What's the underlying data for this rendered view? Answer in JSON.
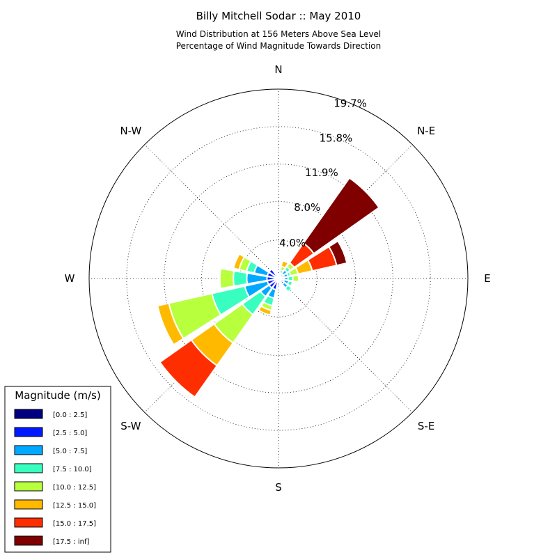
{
  "chart_data": {
    "type": "windrose",
    "title": "Billy Mitchell Sodar :: May 2010",
    "subtitle_line1": "Wind Distribution at 156 Meters Above Sea Level",
    "subtitle_line2": "Percentage of Wind Magnitude Towards Direction",
    "direction_labels": [
      "N",
      "N-E",
      "E",
      "S-E",
      "S",
      "S-W",
      "W",
      "N-W"
    ],
    "ring_values": [
      4.0,
      8.0,
      11.9,
      15.8,
      19.7
    ],
    "ring_labels": [
      "4.0%",
      "8.0%",
      "11.9%",
      "15.8%",
      "19.7%"
    ],
    "rmax": 19.7,
    "legend_title": "Magnitude (m/s)",
    "bins": [
      {
        "label": "[0.0 : 2.5]",
        "color": "#000080"
      },
      {
        "label": "[2.5 : 5.0]",
        "color": "#0019ff"
      },
      {
        "label": "[5.0 : 7.5]",
        "color": "#00a8ff"
      },
      {
        "label": "[7.5 : 10.0]",
        "color": "#38ffbf"
      },
      {
        "label": "[10.0 : 12.5]",
        "color": "#b8ff3e"
      },
      {
        "label": "[12.5 : 15.0]",
        "color": "#ffba00"
      },
      {
        "label": "[15.0 : 17.5]",
        "color": "#ff2e00"
      },
      {
        "label": "[17.5 : inf]",
        "color": "#800000"
      }
    ],
    "sectors": [
      {
        "direction_deg": 0,
        "values": [
          0.1,
          0.15,
          0.1,
          0.05,
          0,
          0,
          0,
          0
        ]
      },
      {
        "direction_deg": 22.5,
        "values": [
          0.2,
          0.2,
          0.2,
          0.3,
          0.4,
          0.6,
          0,
          0
        ]
      },
      {
        "direction_deg": 45,
        "values": [
          0.3,
          0.3,
          0.5,
          0.4,
          0.5,
          0,
          2.5,
          8.3
        ]
      },
      {
        "direction_deg": 67.5,
        "values": [
          0.3,
          0.3,
          0.4,
          0.3,
          0.8,
          1.5,
          2.6,
          1.1
        ]
      },
      {
        "direction_deg": 90,
        "values": [
          0.3,
          0.3,
          0.4,
          0.5,
          0.6,
          0,
          0,
          0
        ]
      },
      {
        "direction_deg": 112.5,
        "values": [
          0.3,
          0.3,
          0.5,
          0.4,
          0,
          0,
          0,
          0
        ]
      },
      {
        "direction_deg": 135,
        "values": [
          0.3,
          0.4,
          0.5,
          0.5,
          0,
          0,
          0,
          0
        ]
      },
      {
        "direction_deg": 157.5,
        "values": [
          0.2,
          0.2,
          0.1,
          0,
          0,
          0,
          0,
          0
        ]
      },
      {
        "direction_deg": 180,
        "values": [
          0.3,
          0.4,
          0.2,
          0,
          0,
          0,
          0,
          0
        ]
      },
      {
        "direction_deg": 202.5,
        "values": [
          0.3,
          0.9,
          0.9,
          0.8,
          0.5,
          0.5,
          0,
          0
        ]
      },
      {
        "direction_deg": 225,
        "values": [
          0.3,
          0.9,
          1.1,
          2.3,
          3.6,
          2.9,
          4.0,
          0
        ]
      },
      {
        "direction_deg": 247.5,
        "values": [
          0.3,
          0.9,
          2.4,
          3.5,
          4.6,
          1.2,
          0,
          0
        ]
      },
      {
        "direction_deg": 270,
        "values": [
          0.3,
          0.9,
          2.1,
          1.4,
          1.4,
          0,
          0,
          0
        ]
      },
      {
        "direction_deg": 292.5,
        "values": [
          0.3,
          0.9,
          1.4,
          0.8,
          0.8,
          0.6,
          0,
          0
        ]
      },
      {
        "direction_deg": 315,
        "values": [
          0.3,
          0.9,
          0,
          0,
          0,
          0,
          0,
          0
        ]
      },
      {
        "direction_deg": 337.5,
        "values": [
          0.1,
          0.3,
          0.2,
          0,
          0,
          0,
          0,
          0
        ]
      }
    ]
  }
}
